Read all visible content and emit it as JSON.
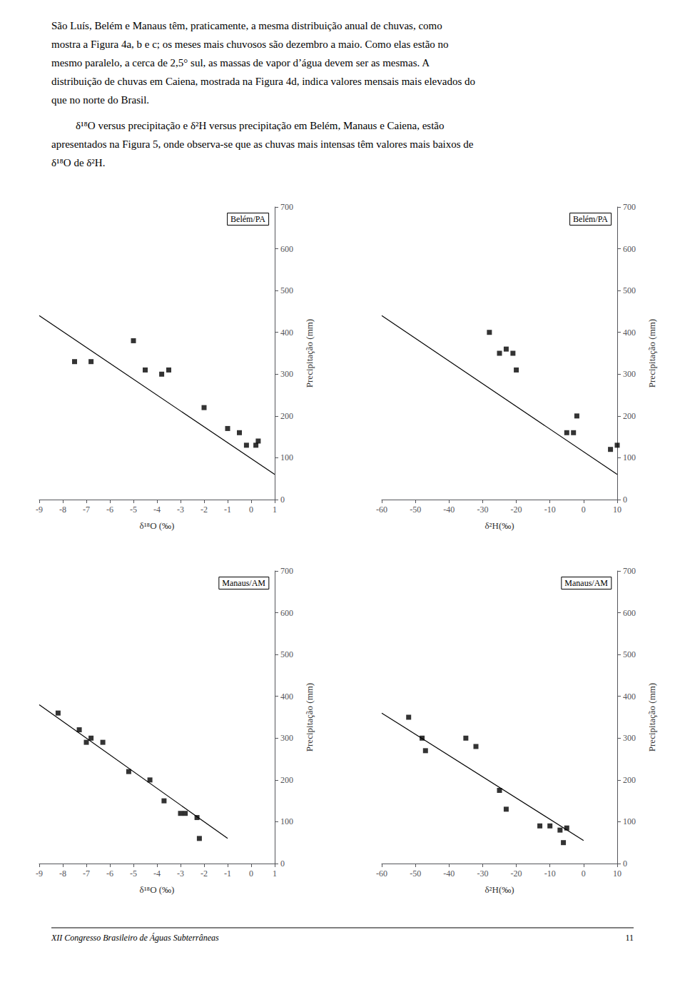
{
  "annotations": {
    "paragraphs": [
      [
        "São Luís, Belém e Manaus têm, praticamente, a mesma distribuição anual de chuvas, como",
        "mostra a Figura 4a, b e c; os meses mais chuvosos são dezembro a maio. Como elas estão no",
        "mesmo paralelo, a cerca de 2,5° sul, as massas de vapor d’água devem ser as mesmas. A",
        "distribuição de chuvas em Caiena, mostrada na Figura 4d, indica valores mensais mais elevados do",
        "que no norte do Brasil."
      ],
      [
        "δ¹⁸O versus precipitação e δ²H versus precipitação em Belém, Manaus e Caiena, estão",
        "apresentados na Figura 5, onde observa-se que as chuvas mais intensas têm valores mais baixos de",
        "δ¹⁸O de δ²H."
      ]
    ],
    "footer": "XII Congresso Brasileiro de Águas Subterrâneas",
    "page": "11"
  },
  "chart_data": [
    {
      "type": "scatter",
      "title": "Belém/PA",
      "xlabel": "δ¹⁸O (‰)",
      "ylabel": "Precipitação (mm)",
      "xlim": [
        -9,
        1
      ],
      "ylim": [
        0,
        700
      ],
      "xticks": [
        -9,
        -8,
        -7,
        -6,
        -5,
        -4,
        -3,
        -2,
        -1,
        0,
        1
      ],
      "yticks": [
        0,
        100,
        200,
        300,
        400,
        500,
        600,
        700
      ],
      "grid": false,
      "series": [
        {
          "type": "scatter",
          "marker": "square",
          "color": "#000000",
          "x": [
            -7.5,
            -6.8,
            -5.0,
            -4.5,
            -3.8,
            -3.5,
            -2.0,
            -1.0,
            -0.5,
            -0.2,
            0.2,
            0.3
          ],
          "values": [
            330,
            330,
            380,
            310,
            300,
            310,
            220,
            170,
            160,
            130,
            130,
            140
          ]
        },
        {
          "type": "line",
          "color": "#000000",
          "x": [
            -9,
            1
          ],
          "values": [
            440,
            60
          ]
        }
      ]
    },
    {
      "type": "scatter",
      "title": "Belém/PA",
      "xlabel": "δ²H(‰)",
      "ylabel": "Precipitação (mm)",
      "xlim": [
        -60,
        10
      ],
      "ylim": [
        0,
        700
      ],
      "xticks": [
        -60,
        -50,
        -40,
        -30,
        -20,
        -10,
        0,
        10
      ],
      "yticks": [
        0,
        100,
        200,
        300,
        400,
        500,
        600,
        700
      ],
      "grid": false,
      "series": [
        {
          "type": "scatter",
          "marker": "square",
          "color": "#000000",
          "x": [
            -28,
            -25,
            -23,
            -21,
            -20,
            -5,
            -3,
            -2,
            10,
            8
          ],
          "values": [
            400,
            350,
            360,
            350,
            310,
            160,
            160,
            200,
            130,
            120
          ]
        },
        {
          "type": "line",
          "color": "#000000",
          "x": [
            -60,
            10
          ],
          "values": [
            440,
            60
          ]
        }
      ]
    },
    {
      "type": "scatter",
      "title": "Manaus/AM",
      "xlabel": "δ¹⁸O (‰)",
      "ylabel": "Precipitação (mm)",
      "xlim": [
        -9,
        1
      ],
      "ylim": [
        0,
        700
      ],
      "xticks": [
        -9,
        -8,
        -7,
        -6,
        -5,
        -4,
        -3,
        -2,
        -1,
        0,
        1
      ],
      "yticks": [
        0,
        100,
        200,
        300,
        400,
        500,
        600,
        700
      ],
      "grid": false,
      "series": [
        {
          "type": "scatter",
          "marker": "square",
          "color": "#000000",
          "x": [
            -8.2,
            -7.3,
            -7.0,
            -6.8,
            -6.3,
            -5.2,
            -4.3,
            -3.7,
            -3.0,
            -2.8,
            -2.3,
            -2.2
          ],
          "values": [
            360,
            320,
            290,
            300,
            290,
            220,
            200,
            150,
            120,
            120,
            110,
            60
          ]
        },
        {
          "type": "line",
          "color": "#000000",
          "x": [
            -9,
            -1
          ],
          "values": [
            380,
            60
          ]
        }
      ]
    },
    {
      "type": "scatter",
      "title": "Manaus/AM",
      "xlabel": "δ²H(‰)",
      "ylabel": "Precipitação (mm)",
      "xlim": [
        -60,
        10
      ],
      "ylim": [
        0,
        700
      ],
      "xticks": [
        -60,
        -50,
        -40,
        -30,
        -20,
        -10,
        0,
        10
      ],
      "yticks": [
        0,
        100,
        200,
        300,
        400,
        500,
        600,
        700
      ],
      "grid": false,
      "series": [
        {
          "type": "scatter",
          "marker": "square",
          "color": "#000000",
          "x": [
            -52,
            -48,
            -47,
            -35,
            -32,
            -25,
            -23,
            -13,
            -10,
            -7,
            -6,
            -5
          ],
          "values": [
            350,
            300,
            270,
            300,
            280,
            175,
            130,
            90,
            90,
            80,
            50,
            85
          ]
        },
        {
          "type": "line",
          "color": "#000000",
          "x": [
            -60,
            0
          ],
          "values": [
            360,
            55
          ]
        }
      ]
    }
  ]
}
